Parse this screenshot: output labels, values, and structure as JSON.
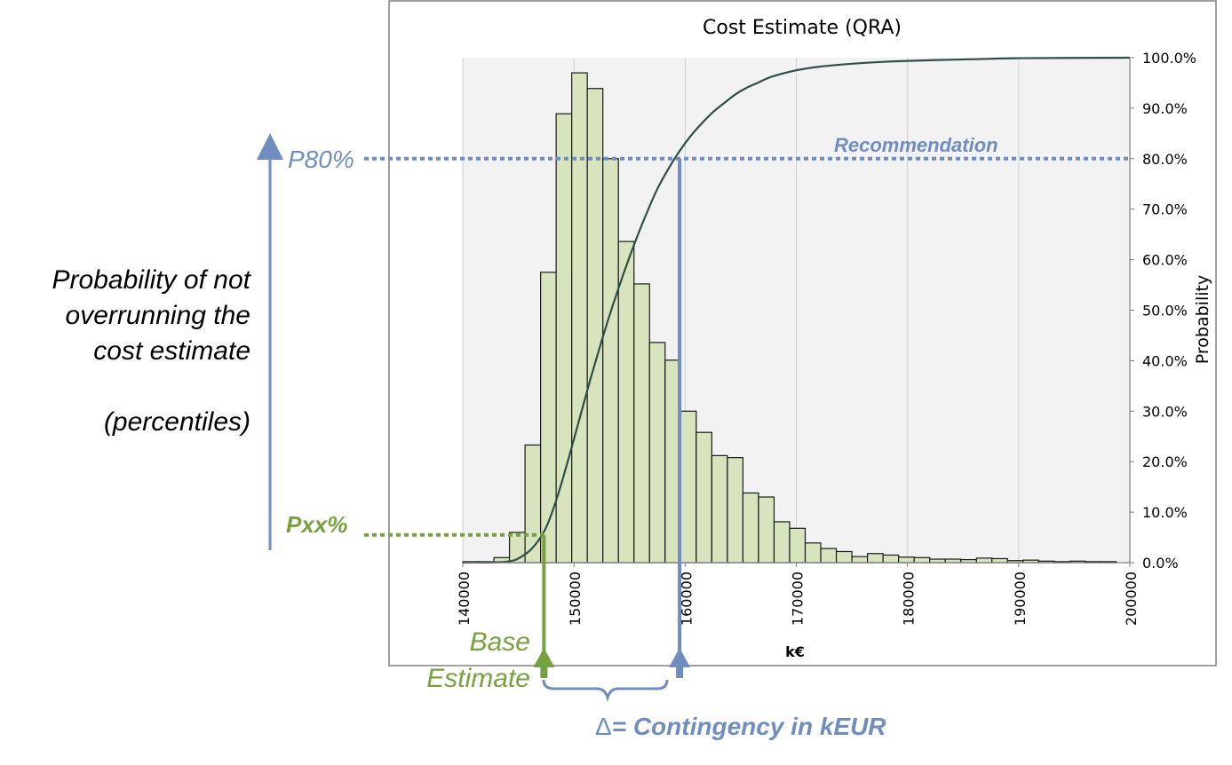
{
  "annotations": {
    "prob_line1": "Probability  of not",
    "prob_line2": "overrunning  the",
    "prob_line3": "cost estimate",
    "prob_line4": "(percentiles)",
    "p80_label": "P80%",
    "pxx_label": "Pxx%",
    "recommendation": "Recommendation",
    "base_line1": "Base",
    "base_line2": "Estimate",
    "contingency_delta": "Δ",
    "contingency_text": "= Contingency in kEUR"
  },
  "colors": {
    "blue": "#6F8EBF",
    "green": "#77A040",
    "bar_fill": "#D7E4BD",
    "bar_stroke": "#1a1a1a",
    "cdf": "#2E4E48",
    "plot_bg": "#F2F2F2",
    "grid": "#D0D0D0"
  },
  "chart_data": {
    "type": "bar",
    "title": "Cost Estimate (QRA)",
    "xlabel": "k€",
    "ylabel": "Probability",
    "xlim": [
      140000,
      200000
    ],
    "x_ticks": [
      "140000",
      "150000",
      "160000",
      "170000",
      "180000",
      "190000",
      "200000"
    ],
    "y_right_lim": [
      0,
      100
    ],
    "y_right_ticks": [
      "0.0%",
      "10.0%",
      "20.0%",
      "30.0%",
      "40.0%",
      "50.0%",
      "60.0%",
      "70.0%",
      "80.0%",
      "90.0%",
      "100.0%"
    ],
    "grid": true,
    "histogram": {
      "bin_start": 140000,
      "bin_width": 1400,
      "values": [
        0.2,
        0.2,
        1.0,
        6.0,
        23.3,
        57.5,
        88.9,
        97.0,
        93.9,
        80.0,
        63.6,
        55.2,
        43.6,
        40.1,
        30.0,
        25.8,
        21.2,
        20.8,
        13.8,
        13.0,
        8.1,
        6.8,
        3.9,
        2.8,
        2.2,
        1.2,
        1.8,
        1.5,
        1.1,
        1.0,
        0.7,
        0.7,
        0.6,
        0.9,
        0.8,
        0.4,
        0.5,
        0.3,
        0.2,
        0.3,
        0.2,
        0.2
      ]
    },
    "cdf": {
      "x": [
        140000,
        144000,
        145500,
        146500,
        147500,
        148500,
        149500,
        150500,
        151500,
        152500,
        153500,
        154500,
        155500,
        156500,
        157500,
        158500,
        159500,
        160500,
        161500,
        162500,
        163500,
        164500,
        165500,
        166500,
        167500,
        168500,
        170000,
        172000,
        175000,
        178000,
        182000,
        186000,
        190000,
        200000
      ],
      "y": [
        0.0,
        0.2,
        1.5,
        3.5,
        7.0,
        13.0,
        20.5,
        28.5,
        36.5,
        44.0,
        51.0,
        57.5,
        63.5,
        69.0,
        74.0,
        78.0,
        81.5,
        84.5,
        87.0,
        89.2,
        91.0,
        92.7,
        94.0,
        95.0,
        96.0,
        96.7,
        97.5,
        98.2,
        98.8,
        99.2,
        99.5,
        99.7,
        99.9,
        100.0
      ]
    },
    "markers": {
      "p80": {
        "x": 159500,
        "y": 80
      },
      "pxx": {
        "x": 147300,
        "y": 5.5
      }
    }
  }
}
